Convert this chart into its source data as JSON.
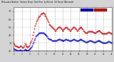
{
  "title": "Milwaukee Weather  Outdoor Temp / Dew Point  by Minute  (24 Hours) (Alternate)",
  "bg_color": "#d4d4d4",
  "plot_bg_color": "#ffffff",
  "grid_color": "#aaaaaa",
  "temp_color": "#cc0000",
  "dew_color": "#0000cc",
  "ylim": [
    20,
    75
  ],
  "xlim": [
    0,
    1440
  ],
  "num_gridlines": 12,
  "temp_data": [
    29,
    28,
    27,
    27,
    26,
    26,
    25,
    25,
    25,
    26,
    27,
    26,
    25,
    24,
    25,
    27,
    29,
    28,
    27,
    26,
    25,
    25,
    26,
    27,
    29,
    31,
    33,
    36,
    40,
    44,
    48,
    52,
    55,
    57,
    59,
    61,
    63,
    64,
    65,
    66,
    67,
    67,
    68,
    68,
    67,
    66,
    65,
    64,
    62,
    60,
    58,
    56,
    54,
    53,
    52,
    51,
    50,
    49,
    48,
    47,
    46,
    46,
    47,
    48,
    49,
    50,
    50,
    50,
    49,
    48,
    47,
    46,
    46,
    47,
    48,
    49,
    50,
    50,
    49,
    48,
    47,
    47,
    46,
    46,
    47,
    48,
    49,
    50,
    50,
    49,
    48,
    47,
    46,
    46,
    47,
    48,
    49,
    50,
    50,
    49,
    48,
    47,
    46,
    45,
    44,
    43,
    43,
    43,
    44,
    45,
    45,
    45,
    45,
    45,
    45,
    44,
    44,
    43,
    43,
    43,
    44,
    45,
    45,
    46,
    46,
    46,
    45,
    44,
    43,
    43,
    42,
    42,
    42,
    42,
    42,
    42,
    43,
    43,
    44,
    44,
    43,
    43,
    42,
    42
  ],
  "dew_data": [
    23,
    22,
    22,
    21,
    21,
    20,
    20,
    20,
    20,
    21,
    21,
    20,
    20,
    19,
    20,
    21,
    22,
    21,
    21,
    20,
    20,
    20,
    21,
    22,
    23,
    24,
    25,
    27,
    29,
    31,
    34,
    36,
    38,
    39,
    40,
    41,
    42,
    43,
    43,
    43,
    43,
    43,
    43,
    43,
    42,
    41,
    41,
    40,
    39,
    38,
    37,
    36,
    35,
    35,
    35,
    34,
    33,
    33,
    33,
    33,
    33,
    33,
    33,
    34,
    34,
    35,
    35,
    35,
    34,
    34,
    34,
    33,
    33,
    33,
    34,
    34,
    35,
    35,
    34,
    34,
    34,
    33,
    33,
    33,
    33,
    34,
    34,
    35,
    35,
    34,
    34,
    33,
    33,
    33,
    33,
    34,
    34,
    35,
    35,
    34,
    34,
    33,
    33,
    32,
    32,
    31,
    31,
    31,
    32,
    32,
    33,
    33,
    33,
    33,
    32,
    32,
    31,
    31,
    31,
    31,
    32,
    32,
    33,
    33,
    33,
    33,
    32,
    32,
    31,
    31,
    30,
    30,
    30,
    30,
    30,
    30,
    31,
    31,
    32,
    32,
    31,
    31,
    30,
    30
  ],
  "yticks": [
    20,
    30,
    40,
    50,
    60,
    70
  ],
  "xtick_hours": [
    0,
    2,
    4,
    6,
    8,
    10,
    12,
    14,
    16,
    18,
    20,
    22,
    24
  ]
}
